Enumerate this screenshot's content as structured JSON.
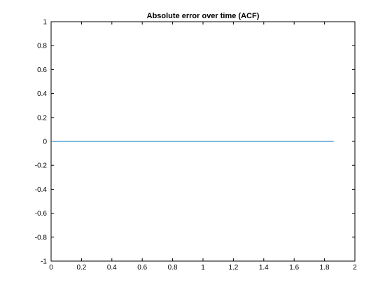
{
  "chart_data": {
    "type": "line",
    "title": "Absolute error over time (ACF)",
    "xlabel": "",
    "ylabel": "",
    "xlim": [
      0,
      2
    ],
    "ylim": [
      -1,
      1
    ],
    "xticks": [
      0,
      0.2,
      0.4,
      0.6,
      0.8,
      1,
      1.2,
      1.4,
      1.6,
      1.8,
      2
    ],
    "xtick_labels": [
      "0",
      "0.2",
      "0.4",
      "0.6",
      "0.8",
      "1",
      "1.2",
      "1.4",
      "1.6",
      "1.8",
      "2"
    ],
    "yticks": [
      -1,
      -0.8,
      -0.6,
      -0.4,
      -0.2,
      0,
      0.2,
      0.4,
      0.6,
      0.8,
      1
    ],
    "ytick_labels": [
      "-1",
      "-0.8",
      "-0.6",
      "-0.4",
      "-0.2",
      "0",
      "0.2",
      "0.4",
      "0.6",
      "0.8",
      "1"
    ],
    "grid": false,
    "series": [
      {
        "color": "#0072bd",
        "x": [
          0,
          1.86
        ],
        "y": [
          0,
          0
        ]
      }
    ]
  }
}
